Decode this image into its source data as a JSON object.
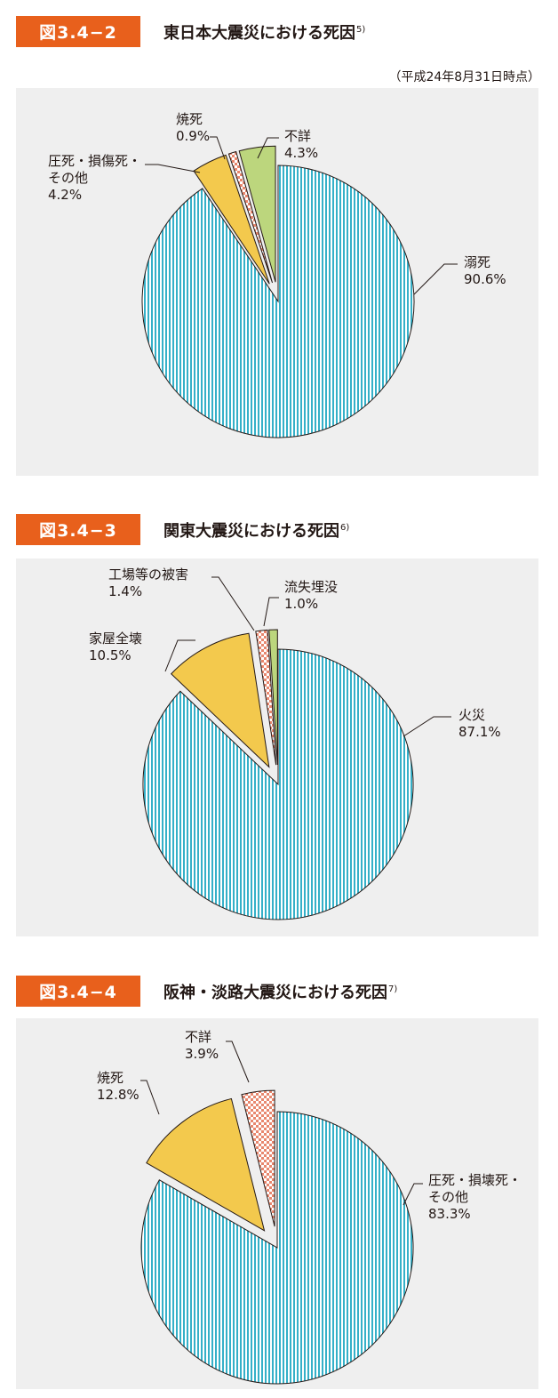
{
  "colors": {
    "accent": "#e8601c",
    "panel": "#efefef",
    "blue": "#35b0c8",
    "yellow": "#f3c94d",
    "pink": "#e8876e",
    "green": "#bcd67d"
  },
  "figures": [
    {
      "badge": "図3.4−2",
      "title": "東日本大震災における死因",
      "title_sup": "5)",
      "note": "（平成24年8月31日時点）"
    },
    {
      "badge": "図3.4−3",
      "title": "関東大震災における死因",
      "title_sup": "6)",
      "note": ""
    },
    {
      "badge": "図3.4−4",
      "title": "阪神・淡路大震災における死因",
      "title_sup": "7)",
      "note": ""
    }
  ],
  "chart_data": [
    {
      "type": "pie",
      "title": "東日本大震災における死因",
      "slices": [
        {
          "label": [
            "溺死"
          ],
          "value": 90.6,
          "value_label": "90.6%",
          "color": "blue",
          "pattern": "vertical-lines"
        },
        {
          "label": [
            "圧死・損傷死・",
            "その他"
          ],
          "value": 4.2,
          "value_label": "4.2%",
          "color": "yellow",
          "pattern": "solid"
        },
        {
          "label": [
            "焼死"
          ],
          "value": 0.9,
          "value_label": "0.9%",
          "color": "pink",
          "pattern": "checker"
        },
        {
          "label": [
            "不詳"
          ],
          "value": 4.3,
          "value_label": "4.3%",
          "color": "green",
          "pattern": "solid"
        }
      ]
    },
    {
      "type": "pie",
      "title": "関東大震災における死因",
      "slices": [
        {
          "label": [
            "火災"
          ],
          "value": 87.1,
          "value_label": "87.1%",
          "color": "blue",
          "pattern": "vertical-lines"
        },
        {
          "label": [
            "家屋全壊"
          ],
          "value": 10.5,
          "value_label": "10.5%",
          "color": "yellow",
          "pattern": "solid"
        },
        {
          "label": [
            "工場等の被害"
          ],
          "value": 1.4,
          "value_label": "1.4%",
          "color": "pink",
          "pattern": "checker"
        },
        {
          "label": [
            "流失埋没"
          ],
          "value": 1.0,
          "value_label": "1.0%",
          "color": "green",
          "pattern": "solid"
        }
      ]
    },
    {
      "type": "pie",
      "title": "阪神・淡路大震災における死因",
      "slices": [
        {
          "label": [
            "圧死・損壊死・",
            "その他"
          ],
          "value": 83.3,
          "value_label": "83.3%",
          "color": "blue",
          "pattern": "vertical-lines"
        },
        {
          "label": [
            "焼死"
          ],
          "value": 12.8,
          "value_label": "12.8%",
          "color": "yellow",
          "pattern": "solid"
        },
        {
          "label": [
            "不詳"
          ],
          "value": 3.9,
          "value_label": "3.9%",
          "color": "pink",
          "pattern": "checker"
        }
      ]
    }
  ]
}
